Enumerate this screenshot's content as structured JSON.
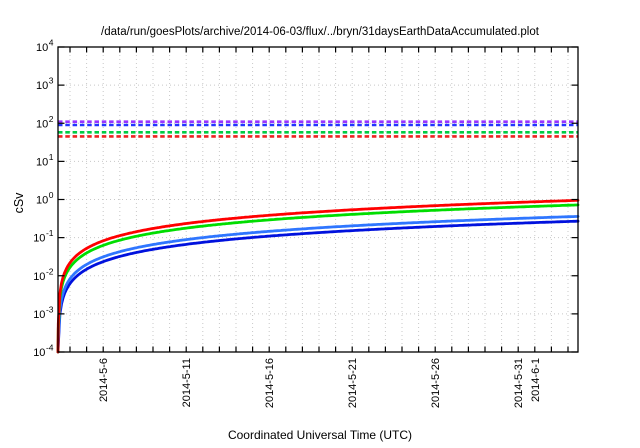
{
  "figure": {
    "title": "/data/run/goesPlots/archive/2014-06-03/flux/../bryn/31daysEarthDataAccumulated.plot",
    "xlabel": "Coordinated Universal Time (UTC)",
    "ylabel": "cSv"
  },
  "chart_data": {
    "type": "line",
    "title": "/data/run/goesPlots/archive/2014-06-03/flux/../bryn/31daysEarthDataAccumulated.plot",
    "xlabel": "Coordinated Universal Time (UTC)",
    "ylabel": "cSv",
    "y_scale": "log10",
    "ylim": [
      0.0001,
      10000
    ],
    "ytick_exponents": [
      4,
      3,
      2,
      1,
      0,
      -1,
      -2,
      -3,
      -4
    ],
    "x_range": {
      "start": "2014-05-03",
      "end": "2014-06-03",
      "total_days": 31.3
    },
    "xtick_labels": [
      {
        "label": "2014-5-6",
        "day_index": 2
      },
      {
        "label": "2014-5-11",
        "day_index": 7
      },
      {
        "label": "2014-5-16",
        "day_index": 12
      },
      {
        "label": "2014-5-21",
        "day_index": 17
      },
      {
        "label": "2014-5-26",
        "day_index": 22
      },
      {
        "label": "2014-5-31",
        "day_index": 27
      },
      {
        "label": "2014-6-1",
        "day_index": 28
      }
    ],
    "grid": {
      "vertical": "dotted gray, one line per day",
      "horizontal": "dotted gray, one line per decade"
    },
    "threshold_lines": [
      {
        "name": "purple-limit",
        "color": "#9933ff",
        "style": "dashed",
        "value_cSv": 110
      },
      {
        "name": "blue-limit",
        "color": "#2233ff",
        "style": "dashed",
        "value_cSv": 90
      },
      {
        "name": "green-limit",
        "color": "#00cc44",
        "style": "dashed",
        "value_cSv": 58
      },
      {
        "name": "red-limit",
        "color": "#ee2222",
        "style": "dashed",
        "value_cSv": 45
      }
    ],
    "series": [
      {
        "name": "darkblue-accumulated-dose",
        "color": "#0011dd",
        "style": "solid",
        "model": "linear_accumulation",
        "final_cSv": 0.27,
        "samples": [
          {
            "date": "2014-5-6",
            "v": 0.023
          },
          {
            "date": "2014-5-11",
            "v": 0.067
          },
          {
            "date": "2014-5-16",
            "v": 0.11
          },
          {
            "date": "2014-5-21",
            "v": 0.153
          },
          {
            "date": "2014-5-26",
            "v": 0.196
          },
          {
            "date": "2014-5-31",
            "v": 0.239
          },
          {
            "date": "2014-6-3",
            "v": 0.27
          }
        ]
      },
      {
        "name": "lightblue-accumulated-dose",
        "color": "#2f76ff",
        "style": "solid",
        "model": "linear_accumulation",
        "final_cSv": 0.36,
        "samples": [
          {
            "date": "2014-5-6",
            "v": 0.031
          },
          {
            "date": "2014-5-11",
            "v": 0.089
          },
          {
            "date": "2014-5-16",
            "v": 0.146
          },
          {
            "date": "2014-5-21",
            "v": 0.204
          },
          {
            "date": "2014-5-26",
            "v": 0.261
          },
          {
            "date": "2014-5-31",
            "v": 0.319
          },
          {
            "date": "2014-6-3",
            "v": 0.36
          }
        ]
      },
      {
        "name": "green-accumulated-dose",
        "color": "#00dd00",
        "style": "solid",
        "model": "linear_accumulation",
        "final_cSv": 0.72,
        "samples": [
          {
            "date": "2014-5-6",
            "v": 0.063
          },
          {
            "date": "2014-5-11",
            "v": 0.177
          },
          {
            "date": "2014-5-16",
            "v": 0.292
          },
          {
            "date": "2014-5-21",
            "v": 0.407
          },
          {
            "date": "2014-5-26",
            "v": 0.522
          },
          {
            "date": "2014-5-31",
            "v": 0.637
          },
          {
            "date": "2014-6-3",
            "v": 0.72
          }
        ]
      },
      {
        "name": "red-accumulated-dose",
        "color": "#ff0000",
        "style": "solid",
        "model": "linear_accumulation",
        "final_cSv": 0.95,
        "samples": [
          {
            "date": "2014-5-6",
            "v": 0.083
          },
          {
            "date": "2014-5-11",
            "v": 0.234
          },
          {
            "date": "2014-5-16",
            "v": 0.386
          },
          {
            "date": "2014-5-21",
            "v": 0.538
          },
          {
            "date": "2014-5-26",
            "v": 0.689
          },
          {
            "date": "2014-5-31",
            "v": 0.841
          },
          {
            "date": "2014-6-3",
            "v": 0.95
          }
        ]
      }
    ],
    "legend": "none",
    "colors": {
      "axis": "#000000",
      "grid": "#c8c8c8",
      "background": "#ffffff"
    }
  }
}
